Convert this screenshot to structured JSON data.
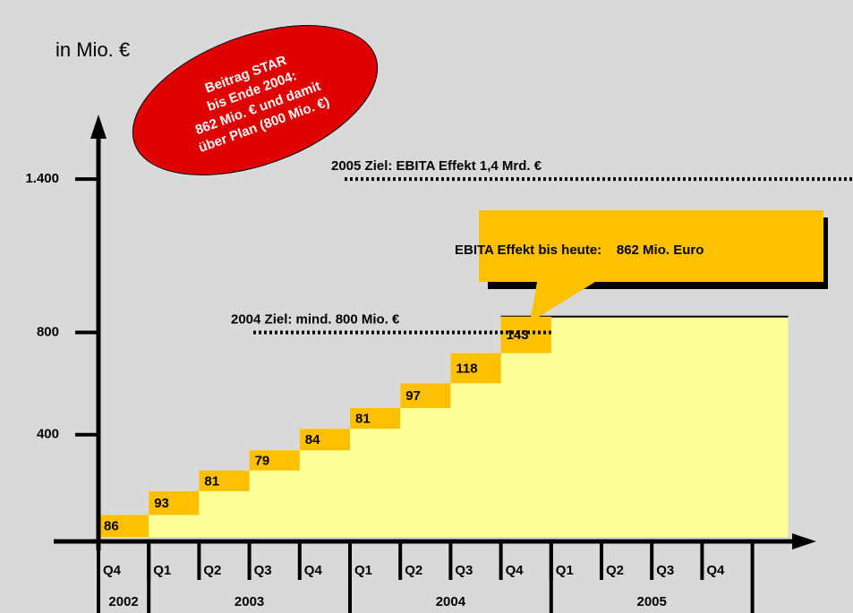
{
  "chart_data": {
    "type": "step",
    "y_axis_label": "in Mio. €",
    "categories": [
      "Q4",
      "Q1",
      "Q2",
      "Q3",
      "Q4",
      "Q1",
      "Q2",
      "Q3",
      "Q4",
      "Q1",
      "Q2",
      "Q3",
      "Q4"
    ],
    "years": [
      {
        "label": "2002",
        "start": 0,
        "end": 1
      },
      {
        "label": "2003",
        "start": 1,
        "end": 5
      },
      {
        "label": "2004",
        "start": 5,
        "end": 9
      },
      {
        "label": "2005",
        "start": 9,
        "end": 13
      }
    ],
    "values": [
      86,
      93,
      81,
      79,
      84,
      81,
      97,
      118,
      143,
      null,
      null,
      null,
      null
    ],
    "color": "#ffc000",
    "area_color": "#ffff99",
    "ylim": [
      0,
      1600
    ],
    "yticks": [
      400,
      800,
      {
        "value": 1400,
        "label": "1.400"
      }
    ],
    "targets": [
      {
        "text": "2005 Ziel: EBITA Effekt 1,4 Mrd. €",
        "value": 1400
      },
      {
        "text": "2004 Ziel: mind. 800 Mio. €",
        "value": 800
      }
    ],
    "callout": "EBITA Effekt bis heute:    862 Mio. Euro",
    "bubble": [
      "Beitrag STAR",
      "bis Ende 2004:",
      "862 Mio. € und damit",
      "über Plan (800 Mio. €)"
    ]
  }
}
